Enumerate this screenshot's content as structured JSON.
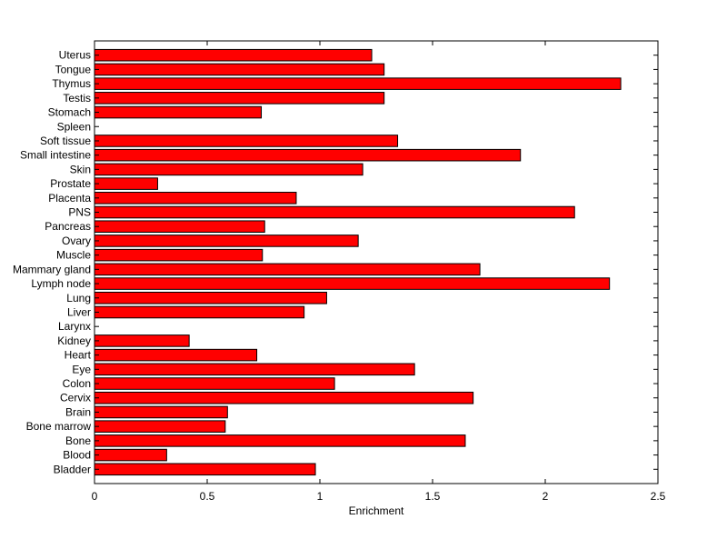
{
  "chart_data": {
    "type": "bar",
    "orientation": "horizontal",
    "title": "",
    "xlabel": "Enrichment",
    "ylabel": "",
    "xlim": [
      0,
      2.5
    ],
    "xticks": [
      "0",
      "0.5",
      "1",
      "1.5",
      "2",
      "2.5"
    ],
    "xtick_values": [
      0,
      0.5,
      1,
      1.5,
      2,
      2.5
    ],
    "bar_color": "#ff0000",
    "categories": [
      "Bladder",
      "Blood",
      "Bone",
      "Bone marrow",
      "Brain",
      "Cervix",
      "Colon",
      "Eye",
      "Heart",
      "Kidney",
      "Larynx",
      "Liver",
      "Lung",
      "Lymph node",
      "Mammary gland",
      "Muscle",
      "Ovary",
      "Pancreas",
      "PNS",
      "Placenta",
      "Prostate",
      "Skin",
      "Small intestine",
      "Soft tissue",
      "Spleen",
      "Stomach",
      "Testis",
      "Thymus",
      "Tongue",
      "Uterus"
    ],
    "values": [
      0.98,
      0.32,
      1.645,
      0.58,
      0.59,
      1.68,
      1.065,
      1.42,
      0.72,
      0.42,
      0,
      0.93,
      1.03,
      2.285,
      1.71,
      0.745,
      1.17,
      0.755,
      2.13,
      0.895,
      0.28,
      1.19,
      1.89,
      1.345,
      0,
      0.74,
      1.285,
      2.335,
      1.285,
      1.23
    ],
    "grid": false,
    "legend": "none"
  }
}
